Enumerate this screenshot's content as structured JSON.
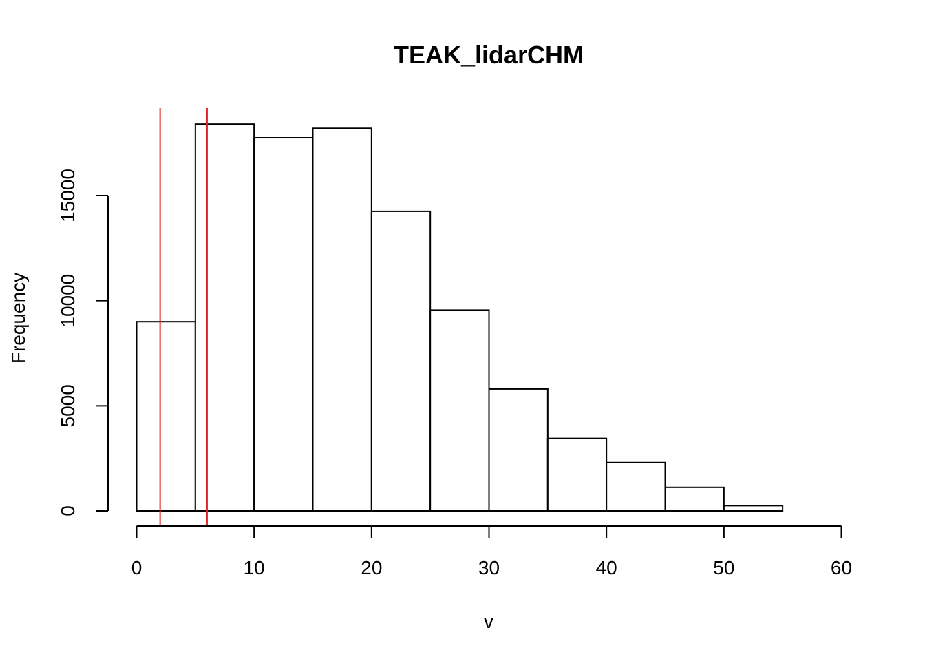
{
  "chart_data": {
    "type": "bar",
    "title": "TEAK_lidarCHM",
    "xlabel": "v",
    "ylabel": "Frequency",
    "bin_edges": [
      0,
      5,
      10,
      15,
      20,
      25,
      30,
      35,
      40,
      45,
      50,
      55,
      60
    ],
    "values": [
      9000,
      18400,
      17750,
      18200,
      14250,
      9550,
      5800,
      3450,
      2300,
      1120,
      250,
      0
    ],
    "xlim": [
      0,
      60
    ],
    "ylim": [
      0,
      19000
    ],
    "x_ticks": [
      0,
      10,
      20,
      30,
      40,
      50,
      60
    ],
    "y_ticks": [
      0,
      5000,
      10000,
      15000
    ],
    "vertical_lines": [
      2,
      6
    ],
    "grid": false,
    "colors": {
      "bar_fill": "#ffffff",
      "bar_stroke": "#000000",
      "line": "#dd2222"
    }
  }
}
